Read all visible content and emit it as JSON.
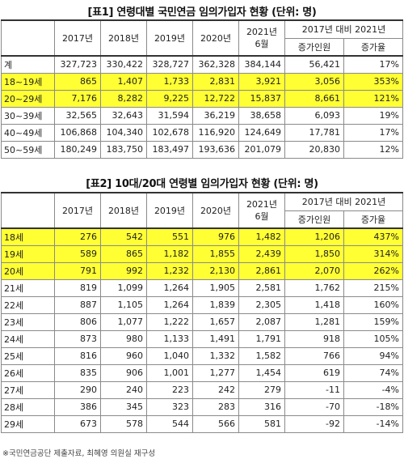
{
  "table1": {
    "title": "[표1] 연령대별 국민연금 임의가입자 현황 (단위: 명)",
    "years": [
      "2017년",
      "2018년",
      "2019년",
      "2020년"
    ],
    "col2021": "2021년\n6월",
    "compare_header": "2017년 대비 2021년",
    "sub_headers": [
      "증가인원",
      "증가율"
    ],
    "rows": [
      {
        "label": "계",
        "values": [
          "327,723",
          "330,422",
          "328,727",
          "362,328",
          "384,144",
          "56,421",
          "17%"
        ],
        "highlight": false
      },
      {
        "label": "18~19세",
        "values": [
          "865",
          "1,407",
          "1,733",
          "2,831",
          "3,921",
          "3,056",
          "353%"
        ],
        "highlight": true
      },
      {
        "label": "20~29세",
        "values": [
          "7,176",
          "8,282",
          "9,225",
          "12,722",
          "15,837",
          "8,661",
          "121%"
        ],
        "highlight": true
      },
      {
        "label": "30~39세",
        "values": [
          "32,565",
          "32,643",
          "31,594",
          "36,219",
          "38,658",
          "6,093",
          "19%"
        ],
        "highlight": false
      },
      {
        "label": "40~49세",
        "values": [
          "106,868",
          "104,340",
          "102,678",
          "116,920",
          "124,649",
          "17,781",
          "17%"
        ],
        "highlight": false
      },
      {
        "label": "50~59세",
        "values": [
          "180,249",
          "183,750",
          "183,497",
          "193,636",
          "201,079",
          "20,830",
          "12%"
        ],
        "highlight": false
      }
    ]
  },
  "table2": {
    "title": "[표2] 10대/20대 연령별 임의가입자 현황 (단위: 명)",
    "years": [
      "2017년",
      "2018년",
      "2019년",
      "2020년"
    ],
    "col2021": "2021년\n6월",
    "compare_header": "2017년 대비 2021년",
    "sub_headers": [
      "증가인원",
      "증가율"
    ],
    "rows": [
      {
        "label": "18세",
        "values": [
          "276",
          "542",
          "551",
          "976",
          "1,482",
          "1,206",
          "437%"
        ],
        "highlight": true
      },
      {
        "label": "19세",
        "values": [
          "589",
          "865",
          "1,182",
          "1,855",
          "2,439",
          "1,850",
          "314%"
        ],
        "highlight": true
      },
      {
        "label": "20세",
        "values": [
          "791",
          "992",
          "1,232",
          "2,130",
          "2,861",
          "2,070",
          "262%"
        ],
        "highlight": true
      },
      {
        "label": "21세",
        "values": [
          "819",
          "1,099",
          "1,264",
          "1,905",
          "2,581",
          "1,762",
          "215%"
        ],
        "highlight": false
      },
      {
        "label": "22세",
        "values": [
          "887",
          "1,105",
          "1,264",
          "1,839",
          "2,305",
          "1,418",
          "160%"
        ],
        "highlight": false
      },
      {
        "label": "23세",
        "values": [
          "806",
          "1,077",
          "1,222",
          "1,657",
          "2,087",
          "1,281",
          "159%"
        ],
        "highlight": false
      },
      {
        "label": "24세",
        "values": [
          "873",
          "980",
          "1,133",
          "1,491",
          "1,791",
          "918",
          "105%"
        ],
        "highlight": false
      },
      {
        "label": "25세",
        "values": [
          "816",
          "960",
          "1,040",
          "1,332",
          "1,582",
          "766",
          "94%"
        ],
        "highlight": false
      },
      {
        "label": "26세",
        "values": [
          "835",
          "906",
          "1,001",
          "1,277",
          "1,454",
          "619",
          "74%"
        ],
        "highlight": false
      },
      {
        "label": "27세",
        "values": [
          "290",
          "240",
          "223",
          "242",
          "279",
          "-11",
          "-4%"
        ],
        "highlight": false
      },
      {
        "label": "28세",
        "values": [
          "386",
          "345",
          "323",
          "283",
          "316",
          "-70",
          "-18%"
        ],
        "highlight": false
      },
      {
        "label": "29세",
        "values": [
          "673",
          "578",
          "544",
          "566",
          "581",
          "-92",
          "-14%"
        ],
        "highlight": false
      }
    ]
  },
  "note": "※국민연금공단 제출자료, 최혜영 의원실 재구성",
  "colors": {
    "highlight": "#ffff33",
    "border": "#8a8a8a"
  }
}
